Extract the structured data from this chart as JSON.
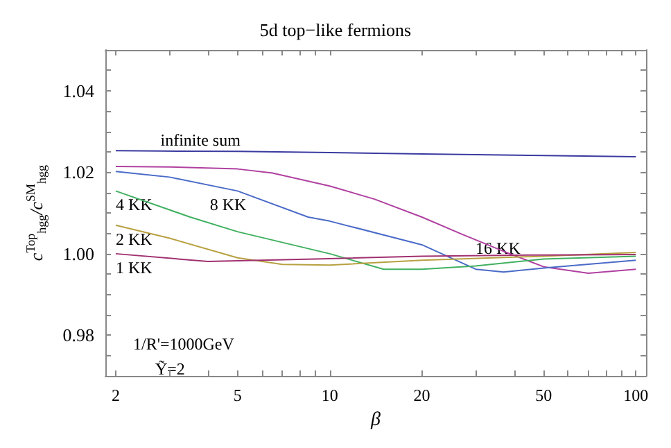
{
  "chart_data": {
    "type": "line",
    "title": "5d top−like fermions",
    "xlabel": "β",
    "ylabel": "c$^{Top}$$_{hgg}$/c$^{SM}$$_{hgg}$",
    "log": "x",
    "grid": false,
    "legend": false,
    "marker": "none",
    "line_style": "solid",
    "xlim": [
      1.85,
      108
    ],
    "ylim": [
      0.97,
      1.05
    ],
    "xticks": [
      2,
      {
        "value": 3,
        "label": null
      },
      {
        "value": 4,
        "label": null
      },
      5,
      {
        "value": 6,
        "label": null
      },
      {
        "value": 7,
        "label": null
      },
      {
        "value": 8,
        "label": null
      },
      {
        "value": 9,
        "label": null
      },
      10,
      20,
      {
        "value": 30,
        "label": null
      },
      {
        "value": 40,
        "label": null
      },
      50,
      {
        "value": 60,
        "label": null
      },
      {
        "value": 70,
        "label": null
      },
      {
        "value": 80,
        "label": null
      },
      {
        "value": 90,
        "label": null
      },
      100
    ],
    "yticks": [
      {
        "value": 0.975,
        "label": null
      },
      {
        "value": 0.98,
        "label": "0.98"
      },
      {
        "value": 0.985,
        "label": null
      },
      {
        "value": 0.99,
        "label": null
      },
      {
        "value": 0.995,
        "label": null
      },
      {
        "value": 1,
        "label": "1.00"
      },
      {
        "value": 1.005,
        "label": null
      },
      {
        "value": 1.01,
        "label": null
      },
      {
        "value": 1.015,
        "label": null
      },
      {
        "value": 1.02,
        "label": "1.02"
      },
      {
        "value": 1.025,
        "label": null
      },
      {
        "value": 1.03,
        "label": null
      },
      {
        "value": 1.035,
        "label": null
      },
      {
        "value": 1.04,
        "label": "1.04"
      },
      {
        "value": 1.045,
        "label": null
      }
    ],
    "series": [
      {
        "name": "infinite sum",
        "color": "#3a3aa0",
        "x": [
          2,
          2.8,
          5,
          10,
          20,
          50,
          100
        ],
        "values": [
          1.0253,
          1.0252,
          1.0251,
          1.0248,
          1.0245,
          1.0241,
          1.0238
        ]
      },
      {
        "name": "16 KK",
        "color": "#b040a0",
        "x": [
          2,
          3,
          5,
          6.5,
          10,
          14,
          20,
          27,
          37,
          50,
          70,
          100
        ],
        "values": [
          1.0214,
          1.0213,
          1.0208,
          1.0198,
          1.0166,
          1.0134,
          1.009,
          1.0048,
          1.0006,
          0.9968,
          0.9952,
          0.9962
        ]
      },
      {
        "name": "8 KK",
        "color": "#4a6ac8",
        "x": [
          2,
          3,
          5,
          8.5,
          10,
          20,
          30,
          37,
          50,
          100
        ],
        "values": [
          1.0202,
          1.0188,
          1.0154,
          1.009,
          1.008,
          1.0022,
          0.9962,
          0.9955,
          0.9965,
          0.9984
        ]
      },
      {
        "name": "4 KK",
        "color": "#40b060",
        "x": [
          2,
          3.5,
          5,
          10,
          15,
          20,
          30,
          50,
          100
        ],
        "values": [
          1.0154,
          1.009,
          1.0054,
          1.0,
          0.9962,
          0.9962,
          0.997,
          0.9987,
          0.9994
        ]
      },
      {
        "name": "2 KK",
        "color": "#b8a040",
        "x": [
          2,
          3,
          5,
          7,
          10,
          20,
          50,
          100
        ],
        "values": [
          1.007,
          1.0038,
          0.999,
          0.9974,
          0.9972,
          0.9984,
          0.9994,
          1.0003
        ]
      },
      {
        "name": "1 KK",
        "color": "#a03070",
        "x": [
          2,
          4,
          10,
          20,
          50,
          100
        ],
        "values": [
          1.0,
          0.9981,
          0.9988,
          0.9994,
          0.9997,
          0.9998
        ]
      }
    ],
    "annotations": [
      "1/R'=1000GeV",
      "Ỹ=2"
    ]
  }
}
